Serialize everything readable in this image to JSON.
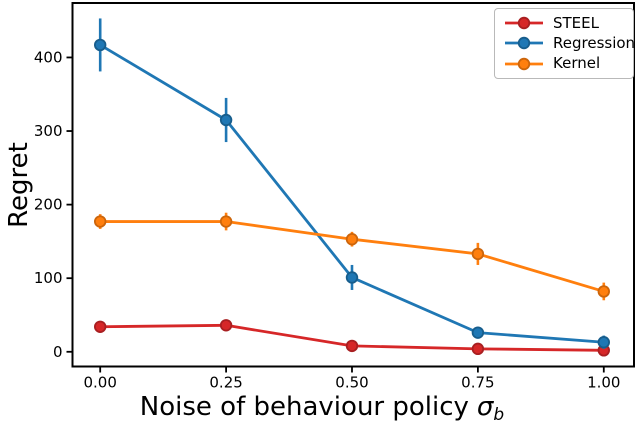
{
  "chart_data": {
    "type": "line",
    "title": "",
    "ylabel": "Regret",
    "xlabel": {
      "text": "Noise of behaviour policy",
      "symbol": "σ",
      "subscript": "b"
    },
    "x": [
      0.0,
      0.25,
      0.5,
      0.75,
      1.0
    ],
    "xtick_labels": [
      "0.00",
      "0.25",
      "0.50",
      "0.75",
      "1.00"
    ],
    "ytick_values": [
      0,
      100,
      200,
      300,
      400
    ],
    "ytick_labels": [
      "0",
      "100",
      "200",
      "300",
      "400"
    ],
    "xlim": [
      -0.055,
      1.06
    ],
    "ylim": [
      -20,
      474
    ],
    "grid": false,
    "error_bars": true,
    "marker": "circle",
    "legend_position": "upper right",
    "axis_color": "#000000",
    "series": [
      {
        "name": "STEEL",
        "color": "#d62728",
        "edge_color": "#a81f21",
        "y": [
          34,
          36,
          8,
          4,
          2
        ],
        "yerr": [
          4,
          5,
          3,
          2,
          2
        ]
      },
      {
        "name": "Regression",
        "color": "#1f77b4",
        "edge_color": "#175d8c",
        "y": [
          417,
          315,
          101,
          26,
          13
        ],
        "yerr": [
          36,
          30,
          17,
          5,
          9
        ]
      },
      {
        "name": "Kernel",
        "color": "#ff7f0e",
        "edge_color": "#cc650b",
        "y": [
          177,
          177,
          153,
          133,
          82
        ],
        "yerr": [
          10,
          12,
          10,
          15,
          12
        ]
      }
    ]
  }
}
